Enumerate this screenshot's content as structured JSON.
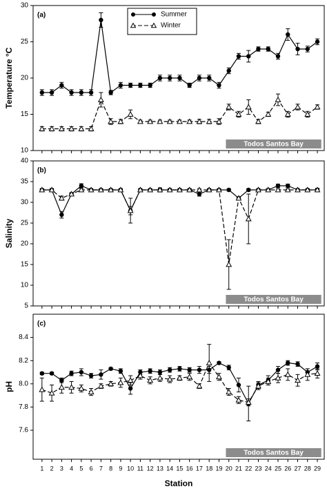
{
  "chart_data": [
    {
      "type": "line",
      "panel_label": "(a)",
      "ylabel": "Temperature °C",
      "annotation": "Todos Santos Bay",
      "x": [
        1,
        2,
        3,
        4,
        5,
        6,
        7,
        8,
        9,
        10,
        11,
        12,
        13,
        14,
        15,
        16,
        17,
        18,
        19,
        20,
        21,
        22,
        23,
        24,
        25,
        26,
        27,
        28,
        29
      ],
      "xlim": [
        0.1,
        29.7
      ],
      "xticks": [
        1,
        2,
        3,
        4,
        5,
        6,
        7,
        8,
        9,
        10,
        11,
        12,
        13,
        14,
        15,
        16,
        17,
        18,
        19,
        20,
        21,
        22,
        23,
        24,
        25,
        26,
        27,
        28,
        29
      ],
      "show_xtick_labels": false,
      "ylim": [
        10,
        30
      ],
      "yticks": [
        10,
        15,
        20,
        25,
        30
      ],
      "legend": "top",
      "series": [
        {
          "name": "Summer",
          "color": "#000000",
          "marker": "circle",
          "dashed": false,
          "values": [
            18,
            18,
            19,
            18,
            18,
            18,
            28,
            18,
            19,
            19,
            19,
            19,
            20,
            20,
            20,
            19,
            20,
            20,
            19,
            21,
            23,
            23,
            24,
            24,
            23,
            26,
            24,
            24,
            25
          ],
          "errors": [
            0.4,
            0.4,
            0.4,
            0.4,
            0.4,
            0.4,
            1,
            0.3,
            0.4,
            0.3,
            0.3,
            0.3,
            0.4,
            0.4,
            0.4,
            0.3,
            0.4,
            0.4,
            0.4,
            0.4,
            0.4,
            0.8,
            0.3,
            0.3,
            0.4,
            0.8,
            0.8,
            0.4,
            0.4
          ]
        },
        {
          "name": "Winter",
          "color": "#000000",
          "marker": "triangle",
          "dashed": true,
          "values": [
            13,
            13,
            13,
            13,
            13,
            13,
            17,
            14,
            14,
            15,
            14,
            14,
            14,
            14,
            14,
            14,
            14,
            14,
            14,
            16,
            15,
            16,
            14,
            15,
            17,
            15,
            16,
            15,
            16
          ],
          "errors": [
            0.3,
            0.3,
            0.3,
            0.3,
            0.3,
            0.3,
            1,
            0.4,
            0.3,
            0.6,
            0.2,
            0.2,
            0.2,
            0.2,
            0.2,
            0.2,
            0.3,
            0.3,
            0.4,
            0.4,
            0.4,
            1,
            0.3,
            0.3,
            0.8,
            0.4,
            0.4,
            0.4,
            0.3
          ]
        }
      ]
    },
    {
      "type": "line",
      "panel_label": "(b)",
      "ylabel": "Salinity",
      "annotation": "Todos Santos Bay",
      "x": [
        1,
        2,
        3,
        4,
        5,
        6,
        7,
        8,
        9,
        10,
        11,
        12,
        13,
        14,
        15,
        16,
        17,
        18,
        19,
        20,
        21,
        22,
        23,
        24,
        25,
        26,
        27,
        28,
        29
      ],
      "xlim": [
        0.1,
        29.7
      ],
      "xticks": [
        1,
        2,
        3,
        4,
        5,
        6,
        7,
        8,
        9,
        10,
        11,
        12,
        13,
        14,
        15,
        16,
        17,
        18,
        19,
        20,
        21,
        22,
        23,
        24,
        25,
        26,
        27,
        28,
        29
      ],
      "show_xtick_labels": false,
      "ylim": [
        5,
        40
      ],
      "yticks": [
        5,
        10,
        15,
        20,
        25,
        30,
        35,
        40
      ],
      "series": [
        {
          "color": "#000000",
          "marker": "circle",
          "dashed": false,
          "values": [
            33,
            33,
            27,
            32,
            34,
            33,
            33,
            33,
            33,
            28,
            33,
            33,
            33,
            33,
            33,
            33,
            32,
            33,
            33,
            33,
            31,
            33,
            33,
            33,
            34,
            34,
            33,
            33,
            33
          ],
          "errors": [
            0.3,
            0.3,
            0.8,
            0.3,
            0.5,
            0.3,
            0.3,
            0.3,
            0.3,
            1,
            0.3,
            0.3,
            0.3,
            0.3,
            0.3,
            0.3,
            0.5,
            0.3,
            0.3,
            0.3,
            0.3,
            0.3,
            0.3,
            0.3,
            0.4,
            0.4,
            0.3,
            0.3,
            0.4
          ]
        },
        {
          "color": "#000000",
          "marker": "triangle",
          "dashed": true,
          "values": [
            33,
            33,
            31,
            32,
            33,
            33,
            33,
            33,
            33,
            28,
            33,
            33,
            33,
            33,
            33,
            33,
            33,
            33,
            33,
            15,
            31,
            26,
            33,
            33,
            33,
            33,
            33,
            33,
            33
          ],
          "errors": [
            0.3,
            0.3,
            0.5,
            0.3,
            0.3,
            0.3,
            0.3,
            0.3,
            0.3,
            3,
            0.3,
            0.3,
            0.5,
            0.3,
            0.3,
            0.3,
            0.3,
            0.3,
            0.3,
            6,
            0.3,
            6,
            0.3,
            0.3,
            0.3,
            0.3,
            0.3,
            0.3,
            0.3
          ]
        }
      ]
    },
    {
      "type": "line",
      "panel_label": "(c)",
      "ylabel": "pH",
      "xlabel": "Station",
      "annotation": "Todos Santos Bay",
      "x": [
        1,
        2,
        3,
        4,
        5,
        6,
        7,
        8,
        9,
        10,
        11,
        12,
        13,
        14,
        15,
        16,
        17,
        18,
        19,
        20,
        21,
        22,
        23,
        24,
        25,
        26,
        27,
        28,
        29
      ],
      "xlim": [
        0.1,
        29.7
      ],
      "xticks": [
        1,
        2,
        3,
        4,
        5,
        6,
        7,
        8,
        9,
        10,
        11,
        12,
        13,
        14,
        15,
        16,
        17,
        18,
        19,
        20,
        21,
        22,
        23,
        24,
        25,
        26,
        27,
        28,
        29
      ],
      "show_xtick_labels": true,
      "ylim": [
        7.35,
        8.6
      ],
      "yticks": [
        7.6,
        7.8,
        {
          "value": 8,
          "label": "8.0"
        },
        8.2,
        8.4
      ],
      "series": [
        {
          "color": "#000000",
          "marker": "circle",
          "dashed": false,
          "values": [
            8.09,
            8.09,
            8.03,
            8.09,
            8.1,
            8.07,
            8.08,
            8.13,
            8.11,
            7.96,
            8.1,
            8.11,
            8.1,
            8.12,
            8.13,
            8.12,
            8.12,
            8.12,
            8.18,
            8.14,
            7.99,
            7.83,
            7.99,
            8.03,
            8.12,
            8.18,
            8.17,
            8.1,
            8.15
          ],
          "errors": [
            0.01,
            0.01,
            0.02,
            0.02,
            0.03,
            0.02,
            0.04,
            0.01,
            0.02,
            0.05,
            0.02,
            0.02,
            0.02,
            0.02,
            0.02,
            0.02,
            0.03,
            0.03,
            0.01,
            0.02,
            0.06,
            0.15,
            0.03,
            0.04,
            0.03,
            0.02,
            0.02,
            0.03,
            0.03
          ]
        },
        {
          "color": "#000000",
          "marker": "triangle",
          "dashed": true,
          "values": [
            7.95,
            7.92,
            7.97,
            7.97,
            7.96,
            7.93,
            7.98,
            8.0,
            8.01,
            8.03,
            8.07,
            8.03,
            8.05,
            8.04,
            8.05,
            8.06,
            7.98,
            8.18,
            8.06,
            7.93,
            7.86,
            7.84,
            7.98,
            8.02,
            8.05,
            8.08,
            8.03,
            8.08,
            8.09
          ],
          "errors": [
            0.1,
            0.07,
            0.05,
            0.05,
            0.03,
            0.03,
            0.02,
            0.02,
            0.04,
            0.04,
            0.03,
            0.03,
            0.03,
            0.03,
            0.02,
            0.03,
            0.02,
            0.16,
            0.03,
            0.03,
            0.03,
            0.03,
            0.03,
            0.03,
            0.04,
            0.05,
            0.05,
            0.05,
            0.04
          ]
        }
      ]
    }
  ]
}
